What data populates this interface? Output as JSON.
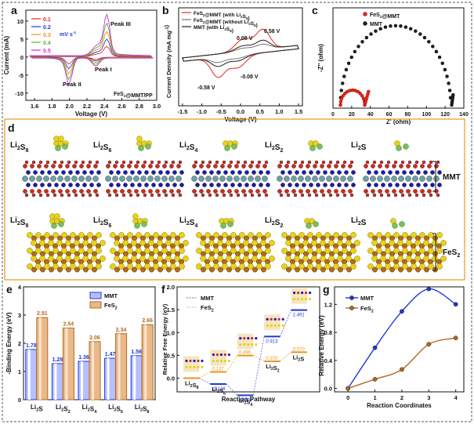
{
  "colors": {
    "red": "#e8281e",
    "blue": "#2138d8",
    "orange": "#e8951e",
    "gold": "#d6a33e",
    "navy": "#1b1bb3",
    "green": "#5fae3c",
    "magenta": "#d22bd0",
    "black": "#222222",
    "brown": "#b36a1c",
    "yellow": "#e8d21a",
    "sgreen": "#7cbf5a",
    "teal": "#6fa0a8",
    "oxy": "#d8271e"
  },
  "panels": {
    "a": "a",
    "b": "b",
    "c": "c",
    "d": "d",
    "e": "e",
    "f": "f",
    "g": "g"
  },
  "panel_a": {
    "ylabel": "Current (mA)",
    "xlabel": "Voltage (V)",
    "xticks": [
      "1.6",
      "1.8",
      "2.0",
      "2.2",
      "2.4",
      "2.6",
      "2.8",
      "3.0"
    ],
    "yticks": [
      "10",
      "5",
      "0",
      "-5",
      "-10"
    ],
    "legend": [
      "0.1",
      "0.2",
      "0.3",
      "0.4",
      "0.5"
    ],
    "legend_unit": "mV s",
    "legend_sup": "-1",
    "peaks": [
      "Peak III",
      "Peak I",
      "Peak II"
    ],
    "sample": "FeS",
    "sample_sub": "2",
    "sample_rest": "@MMT/PP"
  },
  "panel_b": {
    "ylabel": "Current Density (mA mg",
    "ylabel_sup": "-1",
    "ylabel_end": ")",
    "xlabel": "Voltage (V)",
    "xticks": [
      "-1.5",
      "-1.0",
      "-0.5",
      "0.0",
      "0.5",
      "1.0",
      "1.5"
    ],
    "legend": [
      {
        "a": "FeS",
        "sub": "2",
        "b": "@MMT (with Li",
        "sub2": "2",
        "c": "S",
        ",sub3": "6",
        "d": ")"
      },
      {
        "a": "FeS",
        "sub": "2",
        "b": "@MMT (without Li",
        "sub2": "2",
        "c": "S",
        "sub3": "6",
        "d": ")"
      },
      {
        "a": "MMT (with Li",
        "sub2": "2",
        "c": "S",
        "sub3": "6",
        "d": ")"
      }
    ],
    "annotations": [
      "0.58 V",
      "0.08 V",
      "-0.08 V",
      "-0.58 V"
    ]
  },
  "panel_c": {
    "ylabel": "-Z'' (ohm)",
    "xlabel": "Z' (ohm)",
    "xticks": [
      "0",
      "20",
      "40",
      "60",
      "80",
      "100",
      "120",
      "140"
    ],
    "legend": [
      {
        "a": "FeS",
        "sub": "2",
        "b": "@MMT"
      },
      {
        "a": "MMT"
      }
    ]
  },
  "panel_d": {
    "labels": [
      {
        "a": "Li",
        "s": "2",
        "b": "S",
        "s2": "8"
      },
      {
        "a": "Li",
        "s": "2",
        "b": "S",
        "s2": "6"
      },
      {
        "a": "Li",
        "s": "2",
        "b": "S",
        "s2": "4"
      },
      {
        "a": "Li",
        "s": "2",
        "b": "S",
        "s2": "2"
      },
      {
        "a": "Li",
        "s": "2",
        "b": "S",
        "s2": ""
      }
    ],
    "row1": "MMT",
    "row2_a": "FeS",
    "row2_sub": "2"
  },
  "panel_e": {
    "ylabel": "-Binding Energy (eV)",
    "yticks": [
      "0",
      "1",
      "2",
      "3",
      "4"
    ],
    "legend": [
      {
        "a": "MMT"
      },
      {
        "a": "FeS",
        "sub": "2"
      }
    ],
    "categories": [
      {
        "a": "Li",
        "s": "2",
        "b": "S",
        "s2": ""
      },
      {
        "a": "Li",
        "s": "2",
        "b": "S",
        "s2": "2"
      },
      {
        "a": "Li",
        "s": "2",
        "b": "S",
        "s2": "4"
      },
      {
        "a": "Li",
        "s": "2",
        "b": "S",
        "s2": "6"
      },
      {
        "a": "Li",
        "s": "2",
        "b": "S",
        "s2": "8"
      }
    ]
  },
  "panel_f": {
    "ylabel": "Relative Free Energy (eV)",
    "xlabel": "Reaction Pathway",
    "yticks": [
      "0.0",
      "0.5",
      "1.0",
      "1.5",
      "2.0"
    ],
    "legend": [
      {
        "a": "MMT"
      },
      {
        "a": "FeS",
        "sub": "2"
      }
    ],
    "steps": [
      {
        "a": "Li",
        "s": "2",
        "b": "S",
        "s2": "8"
      },
      {
        "a": "Li",
        "s": "2",
        "b": "S",
        "s2": "6"
      },
      {
        "a": "Li",
        "s": "2",
        "b": "S",
        "s2": "4"
      },
      {
        "a": "Li",
        "s": "2",
        "b": "S",
        "s2": "2"
      },
      {
        "a": "Li",
        "s": "2",
        "b": "S",
        "s2": ""
      }
    ],
    "values_mmt": [
      "-0.128",
      "-0.376",
      "0.913",
      "1.491"
    ],
    "values_fes2": [
      "0.137",
      "0.496",
      "0.370",
      "0.570"
    ]
  },
  "panel_g": {
    "ylabel": "Relative Energy (eV)",
    "xlabel": "Reaction Coordinates",
    "xticks": [
      "0",
      "1",
      "2",
      "3",
      "4"
    ],
    "yticks": [
      "0.0",
      "0.4",
      "0.8",
      "1.2"
    ],
    "legend": [
      {
        "a": "MMT"
      },
      {
        "a": "FeS",
        "sub": "2"
      }
    ]
  },
  "chart_data": [
    {
      "type": "line",
      "panel": "e",
      "xlabel": "",
      "ylabel": "-Binding Energy (eV)",
      "ylim": [
        0,
        4
      ],
      "categories": [
        "Li2S",
        "Li2S2",
        "Li2S4",
        "Li2S6",
        "Li2S8"
      ],
      "series": [
        {
          "name": "MMT",
          "values": [
            1.78,
            1.28,
            1.36,
            1.47,
            1.56
          ]
        },
        {
          "name": "FeS2",
          "values": [
            2.91,
            2.54,
            2.06,
            2.34,
            2.66
          ]
        }
      ]
    },
    {
      "type": "line",
      "panel": "g",
      "xlabel": "Reaction Coordinates",
      "ylabel": "Relative Energy (eV)",
      "ylim": [
        -0.05,
        1.45
      ],
      "xlim": [
        -0.5,
        4.3
      ],
      "series": [
        {
          "name": "MMT",
          "x": [
            0,
            1,
            2,
            3,
            4
          ],
          "y": [
            0.0,
            0.58,
            1.1,
            1.42,
            1.2
          ]
        },
        {
          "name": "FeS2",
          "x": [
            0,
            1,
            2,
            3,
            4
          ],
          "y": [
            0.0,
            0.13,
            0.27,
            0.63,
            0.72
          ]
        }
      ]
    },
    {
      "type": "line",
      "panel": "f",
      "ylabel": "Relative Free Energy (eV)",
      "xlabel": "Reaction Pathway",
      "ylim": [
        -0.3,
        2.0
      ],
      "series": [
        {
          "name": "MMT",
          "values": [
            0,
            -0.128,
            -0.376,
            0.913,
            1.491
          ]
        },
        {
          "name": "FeS2",
          "values": [
            0,
            0.137,
            0.496,
            0.37,
            0.57
          ]
        }
      ]
    },
    {
      "type": "scatter",
      "panel": "c",
      "xlabel": "Z' (ohm)",
      "ylabel": "-Z'' (ohm)",
      "xlim": [
        0,
        140
      ],
      "series": [
        {
          "name": "FeS2@MMT",
          "x": [
            8,
            14,
            20,
            26,
            32,
            35
          ],
          "y": [
            0,
            6,
            10,
            10,
            6,
            0
          ]
        },
        {
          "name": "MMT",
          "x": [
            8,
            20,
            40,
            60,
            80,
            100,
            120,
            127
          ],
          "y": [
            0,
            28,
            52,
            62,
            60,
            48,
            22,
            0
          ]
        }
      ]
    },
    {
      "type": "line",
      "panel": "a",
      "xlabel": "Voltage (V)",
      "ylabel": "Current (mA)",
      "xlim": [
        1.5,
        3.0
      ],
      "ylim": [
        -12,
        13
      ],
      "series": [
        {
          "name": "0.1"
        },
        {
          "name": "0.2"
        },
        {
          "name": "0.3"
        },
        {
          "name": "0.4"
        },
        {
          "name": "0.5"
        }
      ]
    },
    {
      "type": "line",
      "panel": "b",
      "xlabel": "Voltage (V)",
      "ylabel": "Current Density (mA mg-1)",
      "xlim": [
        -1.6,
        1.6
      ],
      "series": [
        {
          "name": "FeS2@MMT (with Li2S6)"
        },
        {
          "name": "FeS2@MMT (without Li2S6)"
        },
        {
          "name": "MMT (with Li2S6)"
        }
      ]
    }
  ]
}
